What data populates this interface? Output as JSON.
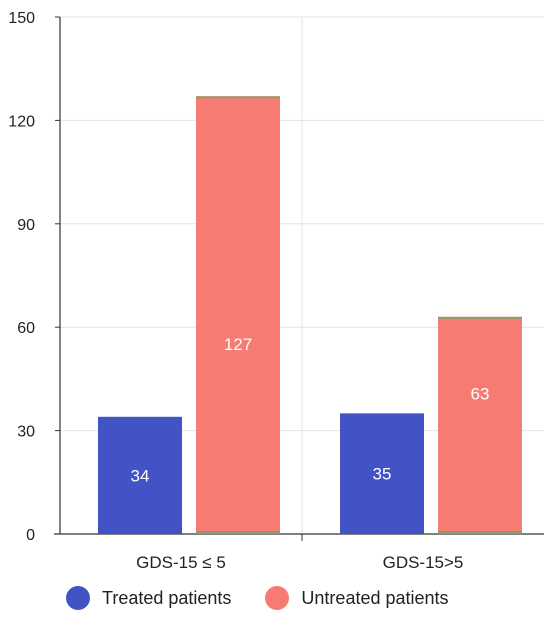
{
  "chart_data": {
    "type": "bar",
    "categories": [
      "GDS-15 ≤ 5",
      "GDS-15>5"
    ],
    "series": [
      {
        "name": "Treated patients",
        "values": [
          34,
          35
        ],
        "color": "#4254c5"
      },
      {
        "name": "Untreated patients",
        "values": [
          127,
          63
        ],
        "color": "#f67b72"
      }
    ],
    "yticks": [
      0,
      30,
      60,
      90,
      120,
      150
    ],
    "ylim": [
      0,
      150
    ],
    "grid": true,
    "legend_position": "bottom-left",
    "title": "",
    "xlabel": "",
    "ylabel": ""
  }
}
